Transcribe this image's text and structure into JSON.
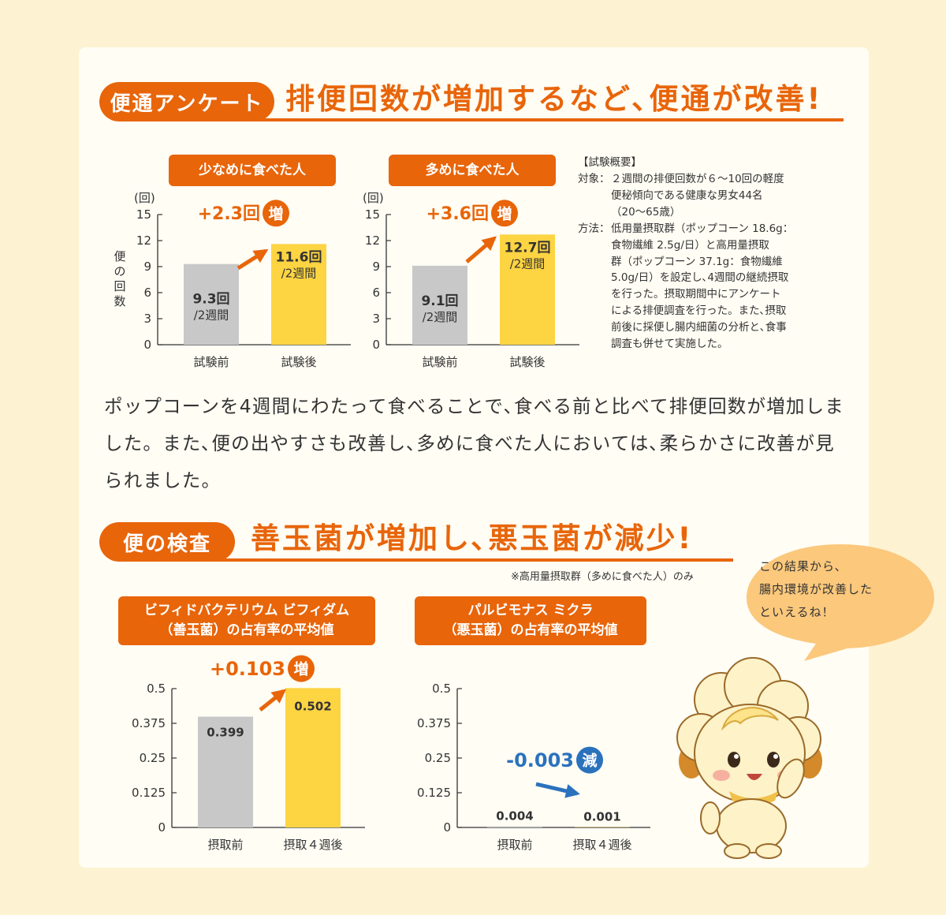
{
  "section1": {
    "tag": "便通アンケート",
    "headline": "排便回数が増加するなど､便通が改善!",
    "ylabel": "便の回数",
    "unit": "(回)"
  },
  "section2": {
    "tag": "便の検査",
    "headline": "善玉菌が増加し､悪玉菌が減少!",
    "note": "※高用量摂取群（多めに食べた人）のみ"
  },
  "summary": {
    "title": "【試験概要】",
    "target_key": "対象：",
    "target_lines": [
      "２週間の排便回数が６～10回の軽度",
      "便秘傾向である健康な男女44名",
      "（20～65歳）"
    ],
    "method_key": "方法：",
    "method_lines": [
      "低用量摂取群（ポップコーン 18.6g：",
      "食物繊維 2.5g/日）と高用量摂取",
      "群（ポップコーン 37.1g：食物繊維",
      "5.0g/日）を設定し､4週間の継続摂取",
      "を行った。摂取期間中にアンケート",
      "による排便調査を行った。また､摂取",
      "前後に採便し腸内細菌の分析と､食事",
      "調査も併せて実施した。"
    ]
  },
  "body_text": "ポップコーンを4週間にわたって食べることで､食べる前と比べて排便回数が増加しました。また､便の出やすさも改善し､多めに食べた人においては､柔らかさに改善が見られました。",
  "bubble_text": [
    "この結果から､",
    "腸内環境が改善した",
    "といえるね！"
  ],
  "colors": {
    "accent": "#e8650a",
    "before_bar": "#c8c8c8",
    "after_bar": "#fdd442",
    "decrease": "#2b72bd"
  },
  "chart_data": [
    {
      "type": "bar",
      "title": "少なめに食べた人",
      "categories": [
        "試験前",
        "試験後"
      ],
      "values": [
        9.3,
        11.6
      ],
      "value_labels": [
        [
          "9.3回",
          "/2週間"
        ],
        [
          "11.6回",
          "/2週間"
        ]
      ],
      "ylabel": "便の回数",
      "yunit": "(回)",
      "yticks": [
        0,
        3,
        6,
        9,
        12,
        15
      ],
      "ylim": [
        0,
        15
      ],
      "change": "+2.3回",
      "change_badge": "増"
    },
    {
      "type": "bar",
      "title": "多めに食べた人",
      "categories": [
        "試験前",
        "試験後"
      ],
      "values": [
        9.1,
        12.7
      ],
      "value_labels": [
        [
          "9.1回",
          "/2週間"
        ],
        [
          "12.7回",
          "/2週間"
        ]
      ],
      "yunit": "(回)",
      "yticks": [
        0,
        3,
        6,
        9,
        12,
        15
      ],
      "ylim": [
        0,
        15
      ],
      "change": "+3.6回",
      "change_badge": "増"
    },
    {
      "type": "bar",
      "title": [
        "ビフィドバクテリウム ビフィダム",
        "（善玉菌）の占有率の平均値"
      ],
      "categories": [
        "摂取前",
        "摂取４週後"
      ],
      "values": [
        0.399,
        0.502
      ],
      "value_labels": [
        [
          "0.399"
        ],
        [
          "0.502"
        ]
      ],
      "yticks": [
        "0",
        "0.125",
        "0.25",
        "0.375",
        "0.5"
      ],
      "ylim": [
        0,
        0.5
      ],
      "change": "+0.103",
      "change_badge": "増"
    },
    {
      "type": "bar",
      "title": [
        "パルビモナス ミクラ",
        "（悪玉菌）の占有率の平均値"
      ],
      "categories": [
        "摂取前",
        "摂取４週後"
      ],
      "values": [
        0.004,
        0.001
      ],
      "value_labels": [
        [
          "0.004"
        ],
        [
          "0.001"
        ]
      ],
      "yticks": [
        "0",
        "0.125",
        "0.25",
        "0.375",
        "0.5"
      ],
      "ylim": [
        0,
        0.5
      ],
      "change": "-0.003",
      "change_badge": "減"
    }
  ]
}
